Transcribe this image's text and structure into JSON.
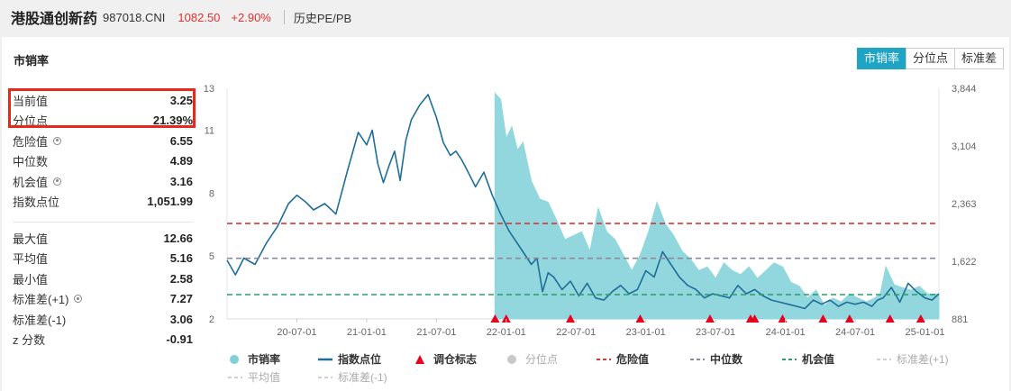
{
  "header": {
    "title": "港股通创新药",
    "code": "987018.CNI",
    "price": "1082.50",
    "change": "+2.90%",
    "history_link": "历史PE/PB"
  },
  "panel": {
    "title": "市销率",
    "tabs": [
      {
        "label": "市销率",
        "active": true
      },
      {
        "label": "分位点",
        "active": false
      },
      {
        "label": "标准差",
        "active": false
      }
    ]
  },
  "stats": {
    "top": [
      {
        "label": "当前值",
        "value": "3.25",
        "gear": false
      },
      {
        "label": "分位点",
        "value": "21.39%",
        "gear": false
      },
      {
        "label": "危险值",
        "value": "6.55",
        "gear": true
      },
      {
        "label": "中位数",
        "value": "4.89",
        "gear": false
      },
      {
        "label": "机会值",
        "value": "3.16",
        "gear": true
      },
      {
        "label": "指数点位",
        "value": "1,051.99",
        "gear": false
      }
    ],
    "bottom": [
      {
        "label": "最大值",
        "value": "12.66",
        "gear": false
      },
      {
        "label": "平均值",
        "value": "5.16",
        "gear": false
      },
      {
        "label": "最小值",
        "value": "2.58",
        "gear": false
      },
      {
        "label": "标准差(+1)",
        "value": "7.27",
        "gear": true
      },
      {
        "label": "标准差(-1)",
        "value": "3.06",
        "gear": false
      },
      {
        "label": "z 分数",
        "value": "-0.91",
        "gear": false
      }
    ]
  },
  "colors": {
    "ps_fill": "#7fd0d8",
    "index_line": "#1f6e99",
    "danger": "#d23a3a",
    "median": "#8a8a9a",
    "opportunity": "#2f9a6a",
    "marker": "#e8001c"
  },
  "chart_data": {
    "type": "line",
    "title": "市销率",
    "x_tick_labels": [
      "20-07-01",
      "21-01-01",
      "21-07-01",
      "22-01-01",
      "22-07-01",
      "23-01-01",
      "23-07-01",
      "24-01-01",
      "24-07-01",
      "25-01-01"
    ],
    "y_left": {
      "min": 2,
      "max": 13,
      "ticks": [
        2,
        5,
        8,
        11,
        13
      ]
    },
    "y_right": {
      "min": 881,
      "max": 3844,
      "ticks": [
        881,
        1622,
        2363,
        3104,
        3844
      ]
    },
    "x_range": [
      2020.0,
      2025.1
    ],
    "ps_series_start": 2021.92,
    "series": [
      {
        "name": "指数点位",
        "axis": "left",
        "x": [
          2020.0,
          2020.06,
          2020.12,
          2020.2,
          2020.28,
          2020.36,
          2020.44,
          2020.5,
          2020.56,
          2020.62,
          2020.7,
          2020.78,
          2020.86,
          2020.94,
          2021.0,
          2021.04,
          2021.08,
          2021.12,
          2021.16,
          2021.2,
          2021.24,
          2021.28,
          2021.32,
          2021.38,
          2021.44,
          2021.5,
          2021.55,
          2021.6,
          2021.64,
          2021.68,
          2021.72,
          2021.78,
          2021.84,
          2021.9,
          2021.96,
          2022.02,
          2022.06,
          2022.12,
          2022.18,
          2022.22,
          2022.26,
          2022.3,
          2022.34,
          2022.4,
          2022.46,
          2022.52,
          2022.58,
          2022.64,
          2022.7,
          2022.76,
          2022.82,
          2022.88,
          2022.94,
          2023.0,
          2023.06,
          2023.12,
          2023.18,
          2023.24,
          2023.3,
          2023.36,
          2023.42,
          2023.48,
          2023.54,
          2023.6,
          2023.66,
          2023.72,
          2023.78,
          2023.84,
          2023.9,
          2023.96,
          2024.02,
          2024.08,
          2024.14,
          2024.2,
          2024.26,
          2024.32,
          2024.38,
          2024.44,
          2024.5,
          2024.56,
          2024.62,
          2024.66,
          2024.7,
          2024.76,
          2024.82,
          2024.88,
          2024.94,
          2025.0,
          2025.05,
          2025.1
        ],
        "values": [
          4.8,
          4.1,
          4.9,
          4.6,
          5.6,
          6.4,
          7.5,
          7.9,
          7.6,
          7.2,
          7.5,
          7.0,
          9.0,
          10.9,
          10.3,
          11.0,
          9.4,
          8.5,
          9.3,
          10.0,
          8.6,
          10.5,
          11.5,
          12.2,
          12.7,
          11.6,
          10.4,
          9.8,
          10.0,
          9.6,
          9.1,
          8.3,
          9.0,
          7.9,
          7.0,
          6.2,
          5.8,
          5.2,
          4.6,
          4.9,
          3.3,
          4.2,
          4.0,
          3.4,
          3.8,
          3.1,
          3.7,
          3.0,
          2.9,
          3.3,
          3.6,
          3.2,
          3.4,
          4.3,
          4.0,
          5.2,
          4.6,
          4.0,
          3.6,
          3.4,
          3.0,
          3.2,
          3.1,
          3.0,
          3.6,
          3.2,
          3.4,
          3.1,
          2.9,
          2.8,
          2.7,
          2.6,
          2.5,
          2.9,
          2.7,
          2.9,
          2.6,
          2.8,
          2.7,
          2.8,
          2.6,
          2.9,
          3.0,
          3.5,
          2.8,
          3.7,
          3.3,
          3.0,
          2.9,
          3.2
        ]
      },
      {
        "name": "市销率",
        "axis": "right",
        "x": [
          2021.92,
          2021.96,
          2022.0,
          2022.04,
          2022.08,
          2022.12,
          2022.18,
          2022.24,
          2022.3,
          2022.36,
          2022.42,
          2022.48,
          2022.54,
          2022.6,
          2022.66,
          2022.72,
          2022.78,
          2022.84,
          2022.9,
          2022.96,
          2023.02,
          2023.08,
          2023.14,
          2023.2,
          2023.26,
          2023.32,
          2023.38,
          2023.44,
          2023.5,
          2023.56,
          2023.62,
          2023.68,
          2023.74,
          2023.8,
          2023.86,
          2023.92,
          2023.98,
          2024.04,
          2024.1,
          2024.16,
          2024.22,
          2024.28,
          2024.34,
          2024.4,
          2024.46,
          2024.52,
          2024.58,
          2024.64,
          2024.68,
          2024.72,
          2024.78,
          2024.84,
          2024.9,
          2024.96,
          2025.02,
          2025.1
        ],
        "values": [
          3780,
          3700,
          3200,
          3350,
          3050,
          3150,
          2650,
          2420,
          2380,
          2150,
          1900,
          1950,
          2000,
          1750,
          2300,
          2000,
          1900,
          1700,
          1500,
          1700,
          2000,
          2380,
          2100,
          1950,
          1750,
          1650,
          1500,
          1550,
          1400,
          1600,
          1500,
          1450,
          1550,
          1400,
          1500,
          1600,
          1550,
          1350,
          1300,
          1150,
          1250,
          1050,
          1150,
          1100,
          1200,
          1150,
          1100,
          1150,
          1200,
          1550,
          1320,
          1280,
          1250,
          1300,
          1200,
          1200
        ]
      }
    ],
    "reference_lines": [
      {
        "name": "危险值",
        "value": 6.55
      },
      {
        "name": "中位数",
        "value": 4.89
      },
      {
        "name": "机会值",
        "value": 3.16
      }
    ],
    "rebalance_markers": [
      2021.92,
      2022.0,
      2022.46,
      2022.96,
      2023.46,
      2023.75,
      2023.78,
      2023.98,
      2024.27,
      2024.46,
      2024.75,
      2024.97
    ],
    "legend": [
      {
        "label": "市销率",
        "kind": "dot",
        "color": "#7fd0d8"
      },
      {
        "label": "指数点位",
        "kind": "line",
        "color": "#1f6e99"
      },
      {
        "label": "调仓标志",
        "kind": "triangle",
        "color": "#e8001c"
      },
      {
        "label": "分位点",
        "kind": "dot",
        "color": "#c8c8c8"
      },
      {
        "label": "危险值",
        "kind": "dash",
        "color": "#d23a3a"
      },
      {
        "label": "中位数",
        "kind": "dash",
        "color": "#8a8a9a"
      },
      {
        "label": "机会值",
        "kind": "dash",
        "color": "#2f9a6a"
      },
      {
        "label": "标准差(+1)",
        "kind": "dash",
        "color": "#d0d0d0"
      },
      {
        "label": "平均值",
        "kind": "dash",
        "color": "#d0d0d0"
      },
      {
        "label": "标准差(-1)",
        "kind": "dash",
        "color": "#d0d0d0"
      }
    ]
  }
}
